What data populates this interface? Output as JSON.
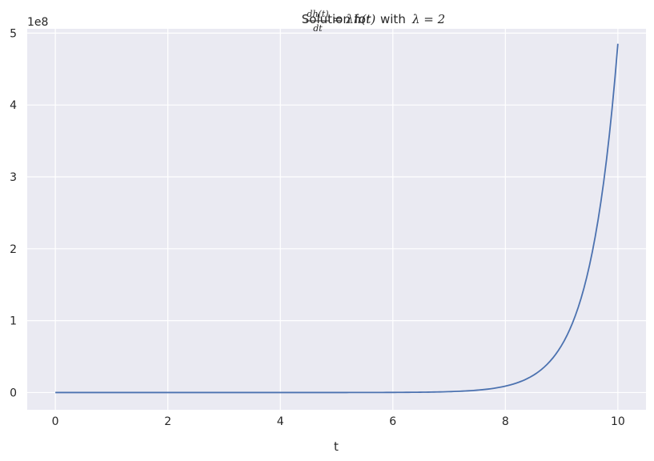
{
  "chart_data": {
    "type": "line",
    "title_parts": {
      "prefix": "Solution for ",
      "frac_numerator": "dh(t)",
      "frac_denominator": "dt",
      "equation_rhs": "= λh(t)",
      "middle": " with ",
      "param": "λ = 2"
    },
    "xlabel": "t",
    "ylabel": "",
    "y_offset_label": "1e8",
    "xlim": [
      -0.5,
      10.5
    ],
    "ylim": [
      -24000000,
      506000000
    ],
    "x_ticks": [
      0,
      2,
      4,
      6,
      8,
      10
    ],
    "x_tick_labels": [
      "0",
      "2",
      "4",
      "6",
      "8",
      "10"
    ],
    "y_ticks": [
      0,
      100000000,
      200000000,
      300000000,
      400000000,
      500000000
    ],
    "y_tick_labels": [
      "0",
      "1",
      "2",
      "3",
      "4",
      "5"
    ],
    "grid": true,
    "function": "h(t) = e^(2t)",
    "lambda": 2,
    "h0": 1,
    "x_range": [
      0,
      10
    ],
    "sample_count": 200,
    "series": [
      {
        "color": "#4c72b0"
      }
    ]
  },
  "colors": {
    "plot_background": "#eaeaf2",
    "grid": "#ffffff",
    "line": "#4c72b0",
    "text": "#262626"
  }
}
